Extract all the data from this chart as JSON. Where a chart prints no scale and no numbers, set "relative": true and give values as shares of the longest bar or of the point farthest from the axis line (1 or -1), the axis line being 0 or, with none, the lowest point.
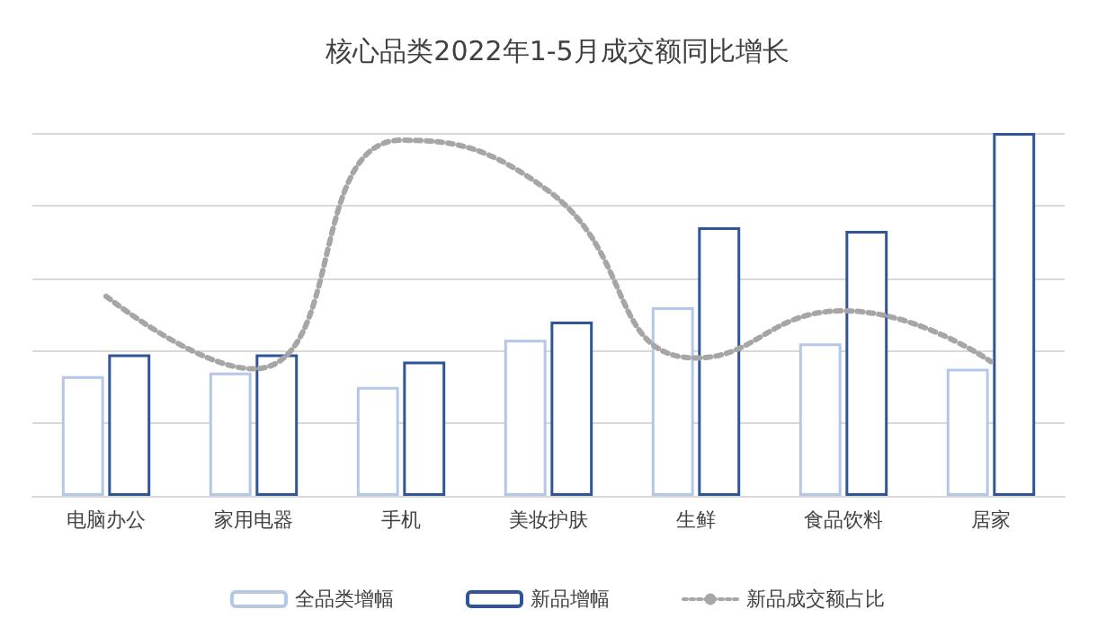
{
  "chart_data": {
    "type": "bar",
    "title": "核心品类2022年1-5月成交额同比增长",
    "relative": true,
    "categories": [
      "电脑办公",
      "家用电器",
      "手机",
      "美妆护肤",
      "生鲜",
      "食品饮料",
      "居家"
    ],
    "series": [
      {
        "name": "全品类增幅",
        "color": "#b4c7e7",
        "values": [
          0.33,
          0.34,
          0.3,
          0.43,
          0.52,
          0.42,
          0.35
        ]
      },
      {
        "name": "新品增幅",
        "color": "#2f5597",
        "values": [
          0.39,
          0.39,
          0.37,
          0.48,
          0.74,
          0.73,
          1
        ]
      },
      {
        "name": "新品成交额占比",
        "type": "line",
        "color": "#a6a6a6",
        "line_style": "dotted",
        "marker": "none",
        "values": [
          0.55,
          0.35,
          0.98,
          0.84,
          0.38,
          0.51,
          0.37
        ]
      }
    ],
    "grid": "y",
    "legend": "bottom"
  }
}
